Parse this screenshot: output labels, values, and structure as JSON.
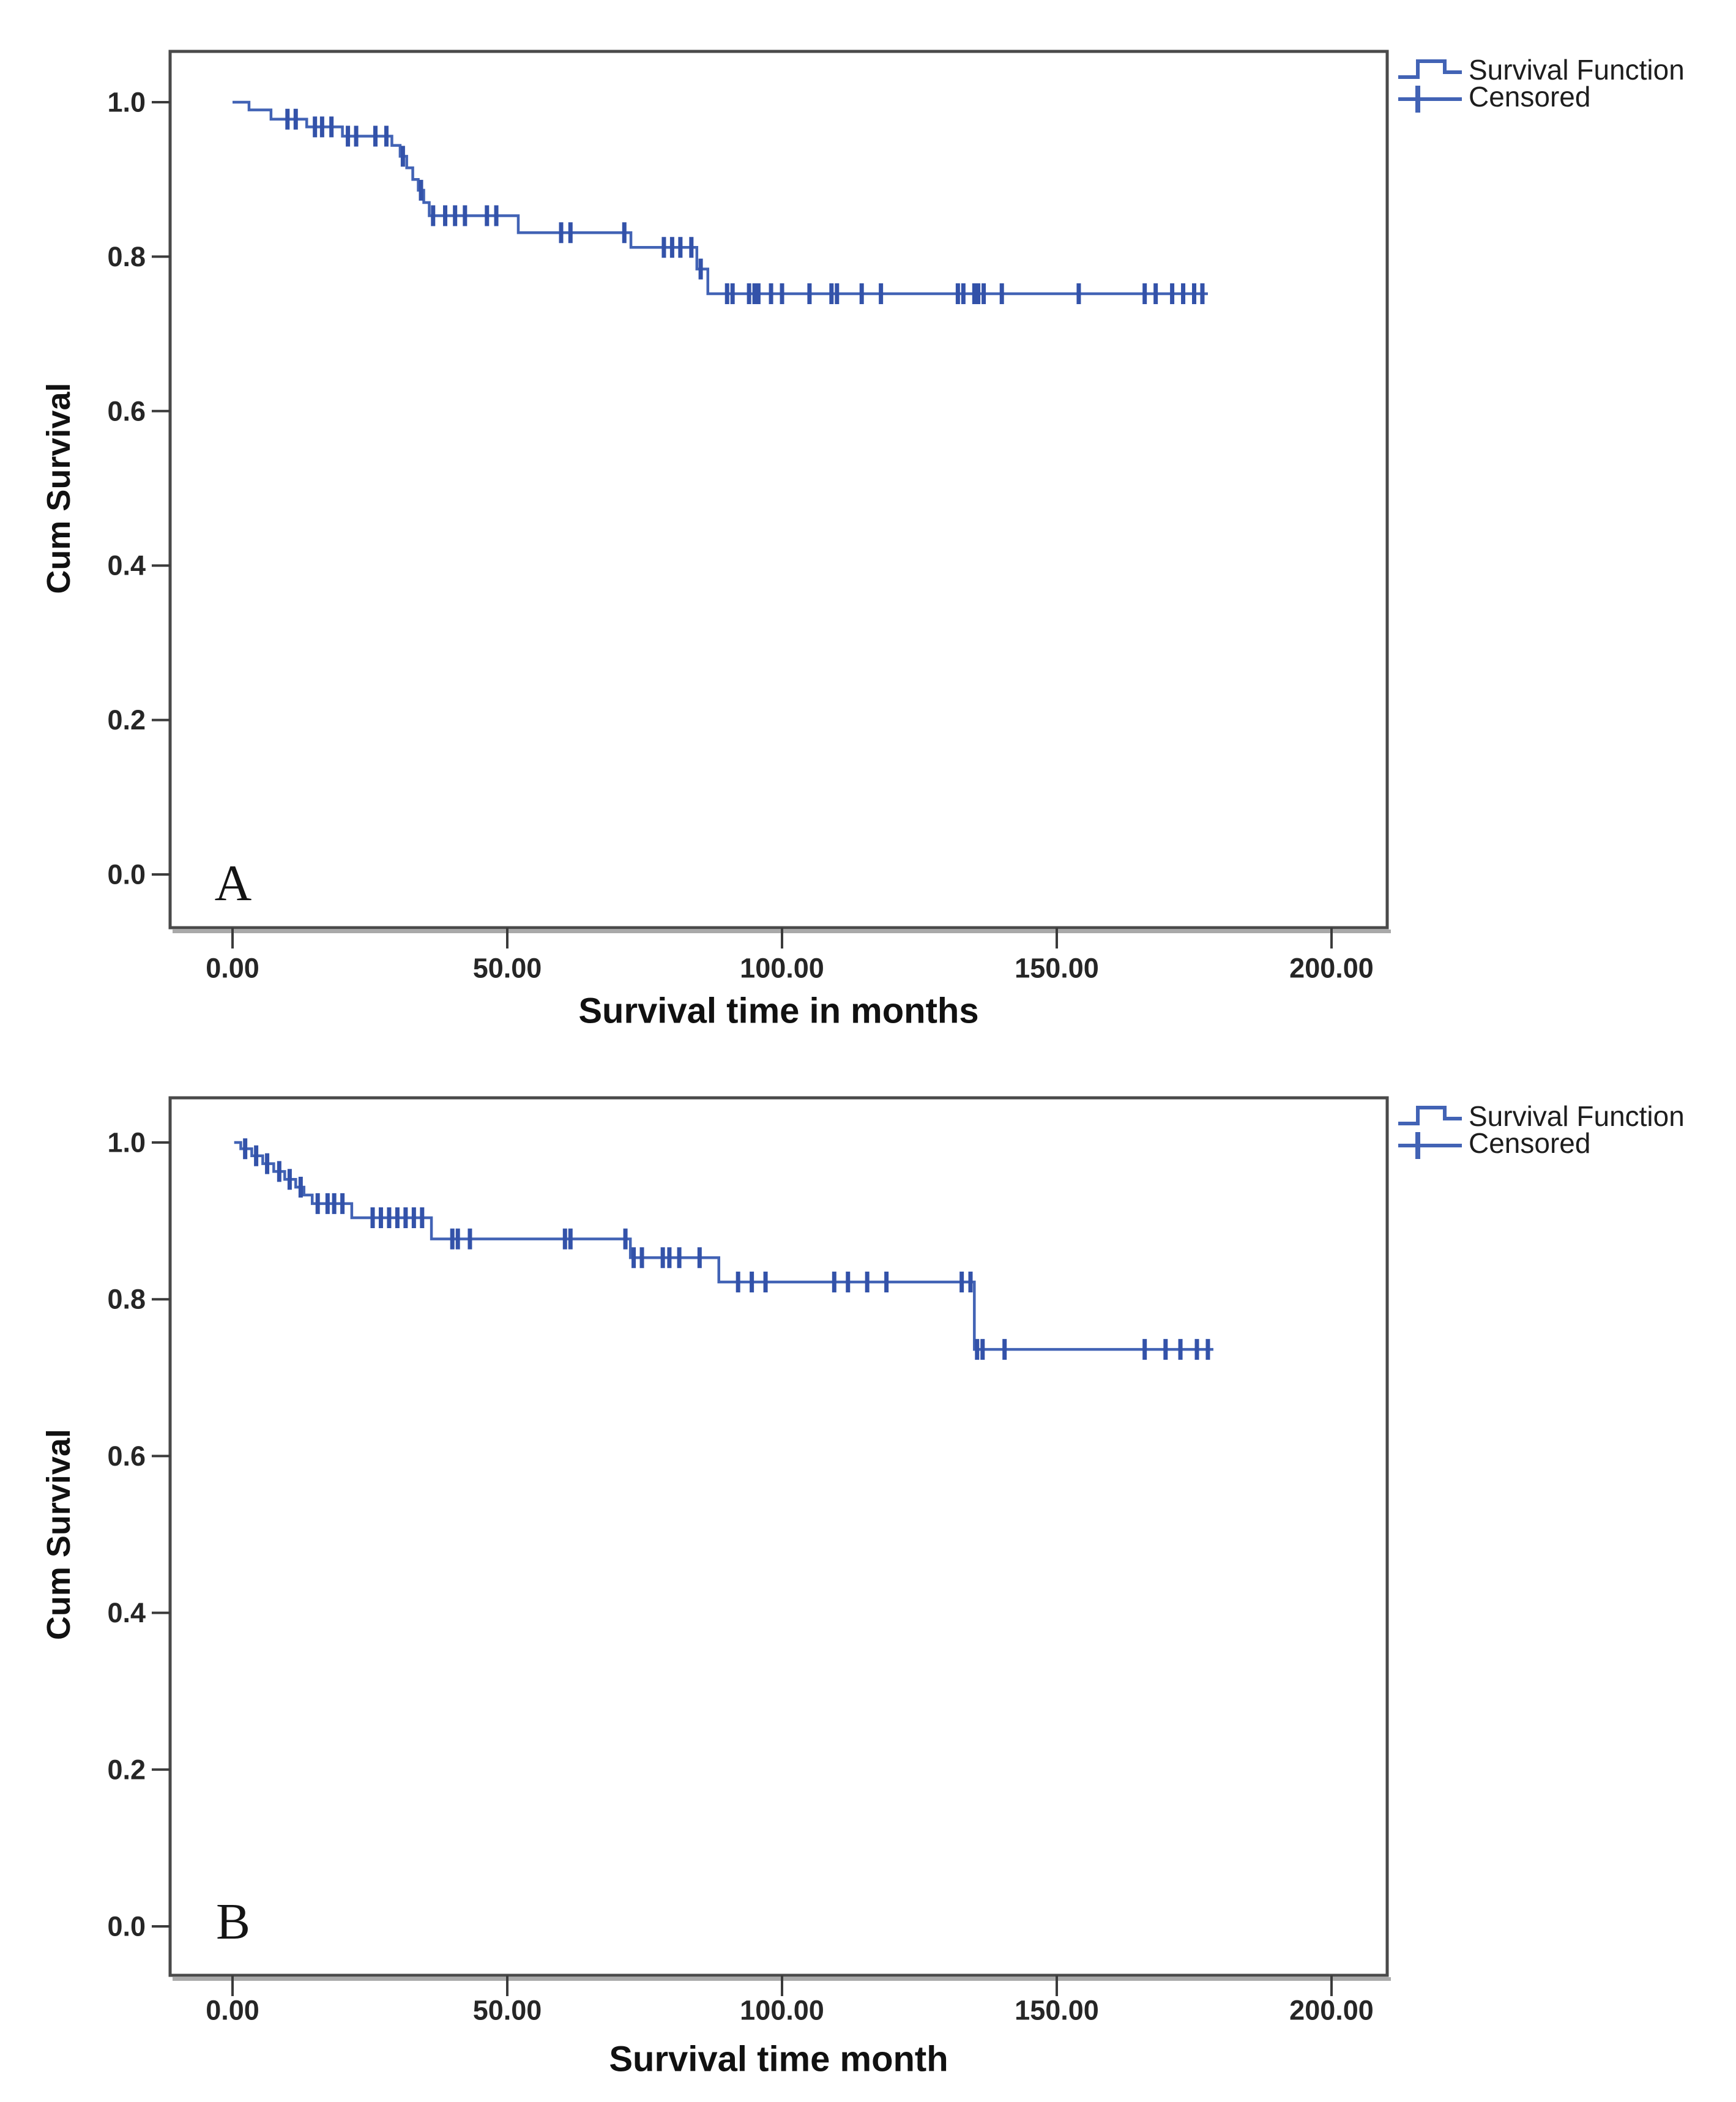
{
  "figure": {
    "background": "#ffffff",
    "border_color": "#4a4a4a",
    "panel_letters": [
      "A",
      "B"
    ]
  },
  "chart_data": [
    {
      "type": "line",
      "subtype": "kaplan_meier_step",
      "panel_label": "A",
      "title": "",
      "xlabel": "Survival time in months",
      "ylabel": "Cum Survival",
      "xlim": [
        0,
        200
      ],
      "ylim": [
        0.0,
        1.0
      ],
      "grid": false,
      "x_ticks": [
        0,
        50,
        100,
        150,
        200
      ],
      "x_tick_labels": [
        "0.00",
        "50.00",
        "100.00",
        "150.00",
        "200.00"
      ],
      "y_ticks": [
        0.0,
        0.2,
        0.4,
        0.6,
        0.8,
        1.0
      ],
      "y_tick_labels": [
        "0.0",
        "0.2",
        "0.4",
        "0.6",
        "0.8",
        "1.0"
      ],
      "legend_position": "top-right-outside",
      "legend": [
        {
          "label": "Survival Function",
          "symbol": "step-line"
        },
        {
          "label": "Censored",
          "symbol": "plus"
        }
      ],
      "line_color": "#4263b5",
      "censor_color": "#3352a9",
      "series": [
        {
          "name": "Survival Function",
          "start": [
            0,
            1.0
          ],
          "steps": [
            [
              3,
              0.99
            ],
            [
              7,
              0.978
            ],
            [
              13.5,
              0.968
            ],
            [
              20,
              0.956
            ],
            [
              29,
              0.944
            ],
            [
              30.5,
              0.93
            ],
            [
              31.7,
              0.915
            ],
            [
              32.8,
              0.9
            ],
            [
              33.8,
              0.886
            ],
            [
              34.8,
              0.87
            ],
            [
              35.8,
              0.853
            ],
            [
              52,
              0.831
            ],
            [
              72.5,
              0.812
            ],
            [
              84.5,
              0.784
            ],
            [
              86.5,
              0.752
            ]
          ],
          "end_time": 177.5
        }
      ],
      "censored_times": [
        10,
        11.5,
        15,
        16.3,
        18,
        21,
        22.5,
        26,
        28,
        31,
        34.3,
        36.5,
        38.7,
        40.5,
        42.3,
        46.3,
        48,
        59.8,
        61.5,
        71.3,
        78.5,
        80,
        81.5,
        83.5,
        85.2,
        90,
        91,
        94,
        95,
        95.7,
        98,
        100,
        105,
        109,
        110,
        114.5,
        118,
        132,
        133,
        135,
        135.7,
        136.7,
        140,
        154,
        166,
        168,
        171,
        173,
        175,
        176.5
      ]
    },
    {
      "type": "line",
      "subtype": "kaplan_meier_step",
      "panel_label": "B",
      "title": "",
      "xlabel": "Survival time month",
      "ylabel": "Cum Survival",
      "xlim": [
        0,
        200
      ],
      "ylim": [
        0.0,
        1.0
      ],
      "grid": false,
      "x_ticks": [
        0,
        50,
        100,
        150,
        200
      ],
      "x_tick_labels": [
        "0.00",
        "50.00",
        "100.00",
        "150.00",
        "200.00"
      ],
      "y_ticks": [
        0.0,
        0.2,
        0.4,
        0.6,
        0.8,
        1.0
      ],
      "y_tick_labels": [
        "0.0",
        "0.2",
        "0.4",
        "0.6",
        "0.8",
        "1.0"
      ],
      "legend_position": "top-right-outside",
      "legend": [
        {
          "label": "Survival Function",
          "symbol": "step-line"
        },
        {
          "label": "Censored",
          "symbol": "plus"
        }
      ],
      "line_color": "#4263b5",
      "censor_color": "#3352a9",
      "series": [
        {
          "name": "Survival Function",
          "start": [
            0.3,
            1.0
          ],
          "steps": [
            [
              1.5,
              0.992
            ],
            [
              3.5,
              0.983
            ],
            [
              5.5,
              0.973
            ],
            [
              7.5,
              0.963
            ],
            [
              9.5,
              0.953
            ],
            [
              11.5,
              0.943
            ],
            [
              13,
              0.933
            ],
            [
              14.5,
              0.922
            ],
            [
              21.7,
              0.904
            ],
            [
              36.2,
              0.877
            ],
            [
              72.4,
              0.853
            ],
            [
              88.5,
              0.822
            ],
            [
              135,
              0.736
            ]
          ],
          "end_time": 178.5
        }
      ],
      "censored_times": [
        2.3,
        4.3,
        6.3,
        8.5,
        10.4,
        12.4,
        15.5,
        17.3,
        18.5,
        20,
        25.5,
        27,
        28.5,
        30,
        31.5,
        33,
        34.5,
        40,
        41,
        43.2,
        60.5,
        61.5,
        71.5,
        73,
        74.5,
        78.3,
        79.5,
        81.3,
        85,
        92,
        94.5,
        97,
        109.5,
        112,
        115.5,
        119,
        132.7,
        134.3,
        135.5,
        136.5,
        140.5,
        166,
        169.8,
        172.5,
        175.5,
        177.5
      ]
    }
  ]
}
